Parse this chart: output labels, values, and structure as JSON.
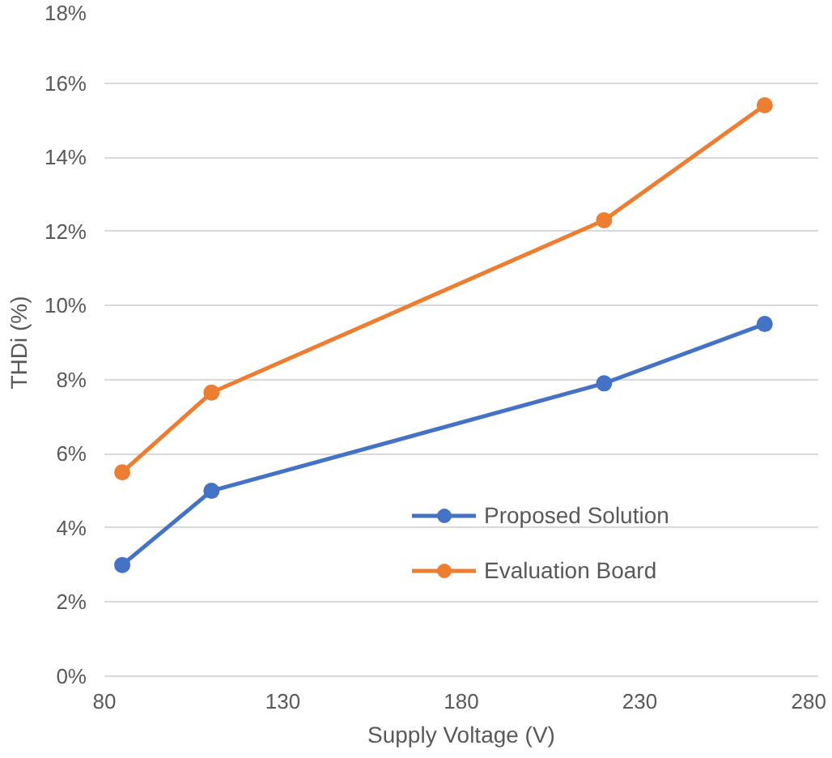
{
  "chart_data": {
    "type": "line",
    "xlabel": "Supply Voltage (V)",
    "ylabel": "THDi (%)",
    "x": [
      85,
      110,
      220,
      265
    ],
    "series": [
      {
        "name": "Proposed Solution",
        "color": "#4472c4",
        "values": [
          3.0,
          5.0,
          7.9,
          9.5
        ]
      },
      {
        "name": "Evaluation Board",
        "color": "#ed7d31",
        "values": [
          5.5,
          7.65,
          12.3,
          15.4
        ]
      }
    ],
    "xlim": [
      80,
      280
    ],
    "xticks": [
      80,
      130,
      180,
      230,
      280
    ],
    "ylim": [
      0,
      18
    ],
    "yticks": [
      {
        "value": 0,
        "label": "0%"
      },
      {
        "value": 2,
        "label": "2%"
      },
      {
        "value": 4,
        "label": "4%"
      },
      {
        "value": 6,
        "label": "6%"
      },
      {
        "value": 8,
        "label": "8%"
      },
      {
        "value": 10,
        "label": "10%"
      },
      {
        "value": 12,
        "label": "12%"
      },
      {
        "value": 14,
        "label": "14%"
      },
      {
        "value": 16,
        "label": "16%"
      },
      {
        "value": 18,
        "label": "18%"
      }
    ],
    "grid": "y",
    "legend": "right",
    "marker": "circle",
    "line_style": "solid"
  }
}
